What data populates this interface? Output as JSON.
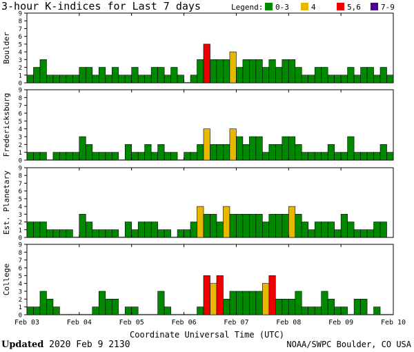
{
  "title": "3-hour K-indices for Last 7 days",
  "legend": {
    "label": "Legend:",
    "items": [
      {
        "label": "0-3",
        "color": "#008800"
      },
      {
        "label": "4",
        "color": "#e8b800"
      },
      {
        "label": "5,6",
        "color": "#ee0000"
      },
      {
        "label": "7-9",
        "color": "#4a0090"
      }
    ]
  },
  "x_axis_title": "Coordinate Universal Time (UTC)",
  "footer": {
    "updated_label": "Updated",
    "updated_value": "2020 Feb  9 2130",
    "source": "NOAA/SWPC Boulder, CO USA"
  },
  "chart_data": {
    "type": "bar",
    "x_ticks": [
      "Feb 03",
      "Feb 04",
      "Feb 05",
      "Feb 06",
      "Feb 07",
      "Feb 08",
      "Feb 09",
      "Feb 10"
    ],
    "y_ticks": [
      "0",
      "1",
      "2",
      "3",
      "4",
      "5",
      "6",
      "7",
      "8",
      "9"
    ],
    "ylim": [
      0,
      9
    ],
    "color_thresholds": {
      "0-3": "#008800",
      "4": "#e8b800",
      "5,6": "#ee0000",
      "7-9": "#4a0090"
    },
    "series": [
      {
        "name": "Boulder",
        "values": [
          1,
          2,
          3,
          1,
          1,
          1,
          1,
          1,
          2,
          2,
          1,
          2,
          1,
          2,
          1,
          1,
          2,
          1,
          1,
          2,
          2,
          1,
          2,
          1,
          0,
          1,
          3,
          5,
          3,
          3,
          3,
          4,
          2,
          3,
          3,
          3,
          2,
          3,
          2,
          3,
          3,
          2,
          1,
          1,
          2,
          2,
          1,
          1,
          1,
          2,
          1,
          2,
          2,
          1,
          2,
          1,
          0
        ]
      },
      {
        "name": "Fredericksburg",
        "values": [
          1,
          1,
          1,
          0,
          1,
          1,
          1,
          1,
          3,
          2,
          1,
          1,
          1,
          1,
          0,
          2,
          1,
          1,
          2,
          1,
          2,
          1,
          1,
          0,
          1,
          1,
          2,
          4,
          2,
          2,
          2,
          4,
          3,
          2,
          3,
          3,
          1,
          2,
          2,
          3,
          3,
          2,
          1,
          1,
          1,
          1,
          2,
          1,
          1,
          3,
          1,
          1,
          1,
          1,
          2,
          1,
          0
        ]
      },
      {
        "name": "Est. Planetary",
        "values": [
          2,
          2,
          2,
          1,
          1,
          1,
          1,
          0,
          3,
          2,
          1,
          1,
          1,
          1,
          0,
          2,
          1,
          2,
          2,
          2,
          1,
          1,
          0,
          1,
          1,
          2,
          4,
          3,
          3,
          2,
          4,
          3,
          3,
          3,
          3,
          3,
          2,
          3,
          3,
          3,
          4,
          3,
          2,
          1,
          2,
          2,
          2,
          1,
          3,
          2,
          1,
          1,
          1,
          2,
          2
        ]
      },
      {
        "name": "College",
        "values": [
          1,
          1,
          3,
          2,
          1,
          0,
          0,
          0,
          0,
          0,
          1,
          3,
          2,
          2,
          0,
          1,
          1,
          0,
          0,
          0,
          3,
          1,
          0,
          0,
          0,
          0,
          1,
          5,
          4,
          5,
          2,
          3,
          3,
          3,
          3,
          3,
          4,
          5,
          2,
          2,
          2,
          3,
          1,
          1,
          1,
          3,
          2,
          1,
          1,
          0,
          2,
          2,
          0,
          1,
          0,
          0,
          0
        ]
      }
    ]
  }
}
